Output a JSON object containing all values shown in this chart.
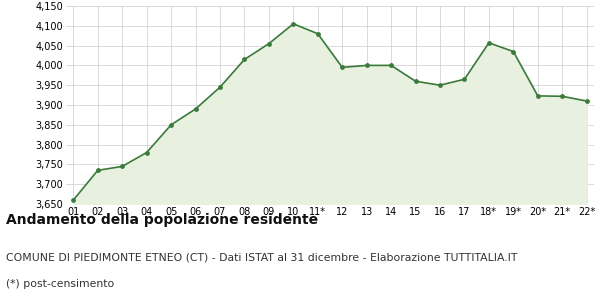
{
  "x_labels": [
    "01",
    "02",
    "03",
    "04",
    "05",
    "06",
    "07",
    "08",
    "09",
    "10",
    "11*",
    "12",
    "13",
    "14",
    "15",
    "16",
    "17",
    "18*",
    "19*",
    "20*",
    "21*",
    "22*"
  ],
  "y_values": [
    3660,
    3735,
    3745,
    3780,
    3850,
    3890,
    3945,
    4015,
    4055,
    4105,
    4080,
    3995,
    4000,
    4000,
    3960,
    3950,
    3965,
    4057,
    4035,
    3923,
    3922,
    3910
  ],
  "line_color": "#3a7a3a",
  "fill_color": "#e8f0e0",
  "marker_color": "#3a7a3a",
  "bg_color": "#ffffff",
  "grid_color": "#cccccc",
  "ylim": [
    3650,
    4150
  ],
  "yticks": [
    3650,
    3700,
    3750,
    3800,
    3850,
    3900,
    3950,
    4000,
    4050,
    4100,
    4150
  ],
  "title": "Andamento della popolazione residente",
  "subtitle": "COMUNE DI PIEDIMONTE ETNEO (CT) - Dati ISTAT al 31 dicembre - Elaborazione TUTTITALIA.IT",
  "footnote": "(*) post-censimento",
  "title_fontsize": 10,
  "subtitle_fontsize": 7.8,
  "footnote_fontsize": 7.8
}
